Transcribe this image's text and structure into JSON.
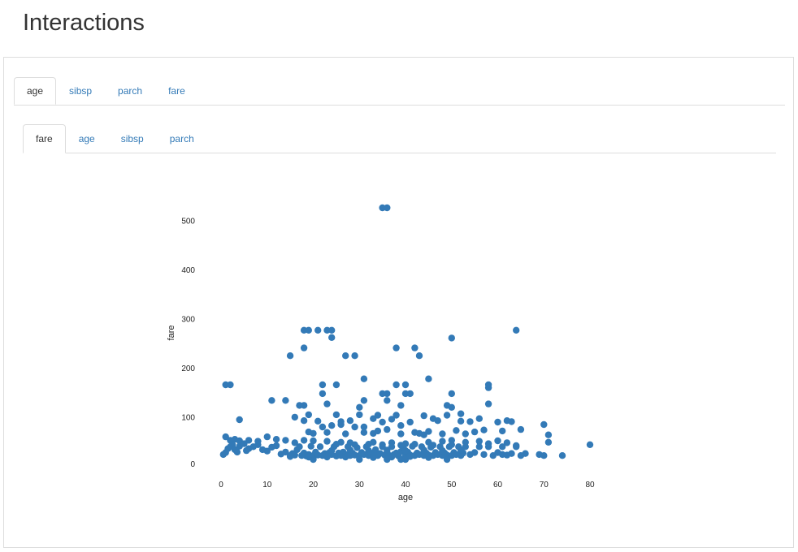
{
  "page": {
    "title": "Interactions"
  },
  "outer_tabs": [
    {
      "label": "age",
      "active": true
    },
    {
      "label": "sibsp",
      "active": false
    },
    {
      "label": "parch",
      "active": false
    },
    {
      "label": "fare",
      "active": false
    }
  ],
  "inner_tabs": [
    {
      "label": "fare",
      "active": true
    },
    {
      "label": "age",
      "active": false
    },
    {
      "label": "sibsp",
      "active": false
    },
    {
      "label": "parch",
      "active": false
    }
  ],
  "colors": {
    "point": "#337ab7",
    "link": "#337ab7",
    "border": "#dddddd"
  },
  "chart_data": {
    "type": "scatter",
    "xlabel": "age",
    "ylabel": "fare",
    "xlim": [
      -2,
      81
    ],
    "ylim": [
      -8,
      520
    ],
    "xticks": [
      "0",
      "10",
      "20",
      "30",
      "40",
      "50",
      "60",
      "70",
      "80"
    ],
    "yticks": [
      "0",
      "100",
      "200",
      "300",
      "400",
      "500"
    ],
    "grid": false,
    "legend": "none",
    "series": [
      {
        "points": [
          [
            35,
            512
          ],
          [
            36,
            512
          ],
          [
            18,
            263
          ],
          [
            19,
            263
          ],
          [
            21,
            263
          ],
          [
            23,
            263
          ],
          [
            24,
            263
          ],
          [
            64,
            263
          ],
          [
            24,
            248
          ],
          [
            50,
            247
          ],
          [
            18,
            227
          ],
          [
            38,
            227
          ],
          [
            42,
            227
          ],
          [
            15,
            211
          ],
          [
            27,
            211
          ],
          [
            29,
            211
          ],
          [
            43,
            211
          ],
          [
            31,
            164
          ],
          [
            45,
            164
          ],
          [
            1,
            152
          ],
          [
            2,
            152
          ],
          [
            22,
            152
          ],
          [
            25,
            152
          ],
          [
            38,
            152
          ],
          [
            40,
            152
          ],
          [
            58,
            152
          ],
          [
            58,
            146
          ],
          [
            22,
            134
          ],
          [
            35,
            134
          ],
          [
            36,
            134
          ],
          [
            40,
            134
          ],
          [
            41,
            134
          ],
          [
            50,
            134
          ],
          [
            11,
            120
          ],
          [
            14,
            120
          ],
          [
            31,
            120
          ],
          [
            36,
            120
          ],
          [
            17,
            110
          ],
          [
            18,
            110
          ],
          [
            49,
            110
          ],
          [
            23,
            113
          ],
          [
            30,
            106
          ],
          [
            39,
            110
          ],
          [
            58,
            113
          ],
          [
            50,
            106
          ],
          [
            52,
            93
          ],
          [
            4,
            81
          ],
          [
            16,
            86
          ],
          [
            19,
            91
          ],
          [
            25,
            91
          ],
          [
            30,
            91
          ],
          [
            34,
            90
          ],
          [
            38,
            90
          ],
          [
            44,
            89
          ],
          [
            46,
            83
          ],
          [
            49,
            90
          ],
          [
            52,
            78
          ],
          [
            54,
            77
          ],
          [
            56,
            83
          ],
          [
            60,
            76
          ],
          [
            62,
            79
          ],
          [
            63,
            77
          ],
          [
            65,
            61
          ],
          [
            70,
            71
          ],
          [
            18,
            79
          ],
          [
            21,
            78
          ],
          [
            26,
            77
          ],
          [
            28,
            79
          ],
          [
            33,
            83
          ],
          [
            35,
            76
          ],
          [
            37,
            82
          ],
          [
            41,
            76
          ],
          [
            47,
            79
          ],
          [
            22,
            66
          ],
          [
            24,
            69
          ],
          [
            26,
            71
          ],
          [
            29,
            66
          ],
          [
            31,
            66
          ],
          [
            34,
            58
          ],
          [
            36,
            61
          ],
          [
            39,
            69
          ],
          [
            43,
            53
          ],
          [
            45,
            57
          ],
          [
            48,
            52
          ],
          [
            51,
            59
          ],
          [
            53,
            52
          ],
          [
            55,
            56
          ],
          [
            57,
            60
          ],
          [
            61,
            58
          ],
          [
            19,
            56
          ],
          [
            20,
            53
          ],
          [
            23,
            55
          ],
          [
            27,
            52
          ],
          [
            31,
            55
          ],
          [
            33,
            53
          ],
          [
            39,
            52
          ],
          [
            42,
            55
          ],
          [
            44,
            50
          ],
          [
            1,
            46
          ],
          [
            2,
            39
          ],
          [
            3,
            41
          ],
          [
            4,
            38
          ],
          [
            6,
            39
          ],
          [
            8,
            37
          ],
          [
            10,
            46
          ],
          [
            12,
            41
          ],
          [
            14,
            39
          ],
          [
            16,
            34
          ],
          [
            18,
            39
          ],
          [
            20,
            38
          ],
          [
            23,
            37
          ],
          [
            26,
            35
          ],
          [
            28,
            34
          ],
          [
            33,
            35
          ],
          [
            37,
            34
          ],
          [
            40,
            32
          ],
          [
            45,
            35
          ],
          [
            48,
            37
          ],
          [
            50,
            39
          ],
          [
            53,
            35
          ],
          [
            56,
            37
          ],
          [
            58,
            32
          ],
          [
            60,
            38
          ],
          [
            62,
            34
          ],
          [
            64,
            28
          ],
          [
            71,
            50
          ],
          [
            71,
            35
          ],
          [
            80,
            30
          ],
          [
            66,
            12
          ],
          [
            69,
            10
          ],
          [
            70,
            8
          ],
          [
            74,
            8
          ],
          [
            61,
            10
          ],
          [
            63,
            12
          ],
          [
            0.5,
            10
          ],
          [
            1,
            14
          ],
          [
            1.5,
            22
          ],
          [
            2,
            26
          ],
          [
            2.5,
            30
          ],
          [
            3,
            20
          ],
          [
            3.5,
            15
          ],
          [
            4,
            27
          ],
          [
            5,
            32
          ],
          [
            5.5,
            18
          ],
          [
            6,
            22
          ],
          [
            7,
            26
          ],
          [
            8,
            30
          ],
          [
            9,
            20
          ],
          [
            10,
            17
          ],
          [
            11,
            25
          ],
          [
            12,
            28
          ],
          [
            13,
            11
          ],
          [
            14,
            15
          ],
          [
            15,
            8
          ],
          [
            15.5,
            12
          ],
          [
            16,
            9
          ],
          [
            16.5,
            20
          ],
          [
            17,
            26
          ],
          [
            17.5,
            8
          ],
          [
            18,
            13
          ],
          [
            18.5,
            7
          ],
          [
            19,
            10
          ],
          [
            19.5,
            27
          ],
          [
            20,
            8
          ],
          [
            20.5,
            15
          ],
          [
            21,
            9
          ],
          [
            21.5,
            26
          ],
          [
            22,
            8
          ],
          [
            22.5,
            12
          ],
          [
            23,
            7
          ],
          [
            23.5,
            14
          ],
          [
            24,
            10
          ],
          [
            24.5,
            26
          ],
          [
            25,
            7
          ],
          [
            25.5,
            13
          ],
          [
            26,
            8
          ],
          [
            26.5,
            15
          ],
          [
            27,
            10
          ],
          [
            27.5,
            26
          ],
          [
            28,
            8
          ],
          [
            28.5,
            13
          ],
          [
            29,
            9
          ],
          [
            29.5,
            24
          ],
          [
            30,
            8
          ],
          [
            30.5,
            14
          ],
          [
            31,
            10
          ],
          [
            31.5,
            26
          ],
          [
            32,
            8
          ],
          [
            32.5,
            13
          ],
          [
            33,
            9
          ],
          [
            33.5,
            20
          ],
          [
            34,
            8
          ],
          [
            34.5,
            12
          ],
          [
            35,
            26
          ],
          [
            35.5,
            9
          ],
          [
            36,
            14
          ],
          [
            36.5,
            8
          ],
          [
            37,
            26
          ],
          [
            37.5,
            10
          ],
          [
            38,
            13
          ],
          [
            38.5,
            7
          ],
          [
            39,
            16
          ],
          [
            39.5,
            26
          ],
          [
            40,
            8
          ],
          [
            40.5,
            15
          ],
          [
            41,
            9
          ],
          [
            41.5,
            27
          ],
          [
            42,
            8
          ],
          [
            42.5,
            13
          ],
          [
            43,
            10
          ],
          [
            43.5,
            26
          ],
          [
            44,
            8
          ],
          [
            44.5,
            13
          ],
          [
            45,
            9
          ],
          [
            45.5,
            25
          ],
          [
            46,
            8
          ],
          [
            46.5,
            14
          ],
          [
            47,
            10
          ],
          [
            47.5,
            26
          ],
          [
            48,
            8
          ],
          [
            48.5,
            13
          ],
          [
            49,
            9
          ],
          [
            49.5,
            26
          ],
          [
            50,
            8
          ],
          [
            50.5,
            14
          ],
          [
            51,
            10
          ],
          [
            51.5,
            26
          ],
          [
            52,
            8
          ],
          [
            52.5,
            13
          ],
          [
            53,
            26
          ],
          [
            54,
            10
          ],
          [
            55,
            14
          ],
          [
            56,
            26
          ],
          [
            57,
            10
          ],
          [
            58,
            26
          ],
          [
            59,
            8
          ],
          [
            60,
            14
          ],
          [
            61,
            26
          ],
          [
            62,
            9
          ],
          [
            64,
            26
          ],
          [
            65,
            8
          ],
          [
            20,
            0
          ],
          [
            30,
            0
          ],
          [
            36,
            0
          ],
          [
            39,
            0
          ],
          [
            40,
            0
          ],
          [
            49,
            0
          ],
          [
            15,
            6
          ],
          [
            19,
            5
          ],
          [
            23,
            5
          ],
          [
            27,
            5
          ],
          [
            33,
            4
          ],
          [
            37,
            5
          ],
          [
            41,
            6
          ],
          [
            45,
            4
          ],
          [
            24,
            18
          ],
          [
            28,
            19
          ],
          [
            32,
            18
          ],
          [
            36,
            19
          ],
          [
            40,
            18
          ],
          [
            44,
            19
          ],
          [
            48,
            18
          ],
          [
            52,
            19
          ],
          [
            25,
            31
          ],
          [
            29,
            30
          ],
          [
            32,
            31
          ],
          [
            35,
            30
          ],
          [
            39,
            29
          ],
          [
            42,
            31
          ],
          [
            46,
            29
          ],
          [
            50,
            30
          ]
        ]
      }
    ]
  }
}
